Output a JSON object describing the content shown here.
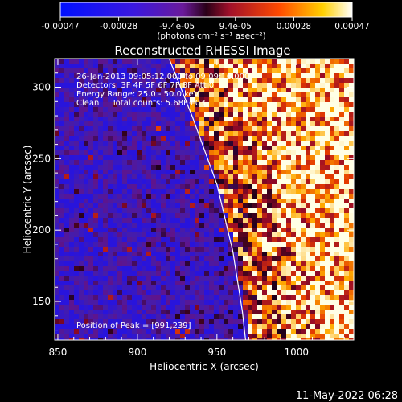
{
  "chart_data": {
    "type": "heatmap",
    "title": "Reconstructed RHESSI Image",
    "xlabel": "Heliocentric X (arcsec)",
    "ylabel": "Heliocentric Y (arcsec)",
    "xlim": [
      848,
      1036
    ],
    "ylim": [
      123,
      320
    ],
    "x_ticks": [
      850,
      900,
      950,
      1000
    ],
    "y_ticks": [
      150,
      200,
      250,
      300
    ],
    "colorbar": {
      "tick_labels": [
        "-0.00047",
        "-0.00028",
        "-9.4e-05",
        "9.4e-05",
        "0.00028",
        "0.00047"
      ],
      "range": [
        -0.00047,
        0.00047
      ],
      "unit_label": "(photons cm⁻² s⁻¹ asec⁻²)"
    },
    "annotations": {
      "time_range": "26-Jan-2013 09:05:12.000 to 09:09:16.000",
      "detectors": "Detectors: 3F 4F 5F 6F 7F 8F Att 0",
      "energy_range": "Energy Range: 25.0 - 50.0 keV",
      "clean_counts": "Clean     Total counts: 5.68E+03",
      "peak_position": "Position of Peak = [991,239]"
    },
    "peak": [
      991,
      239
    ],
    "limb_curve": [
      [
        920,
        320
      ],
      [
        935,
        278
      ],
      [
        950,
        232
      ],
      [
        960,
        185
      ],
      [
        966,
        143
      ],
      [
        968,
        123
      ]
    ]
  },
  "timestamp": "11-May-2022 06:28",
  "colors": {
    "background": "#000000",
    "colormap": [
      "#1010ff",
      "#5a14c8",
      "#86128e",
      "#cc0d1e",
      "#ff5a00",
      "#ffb800",
      "#ffffff"
    ]
  }
}
